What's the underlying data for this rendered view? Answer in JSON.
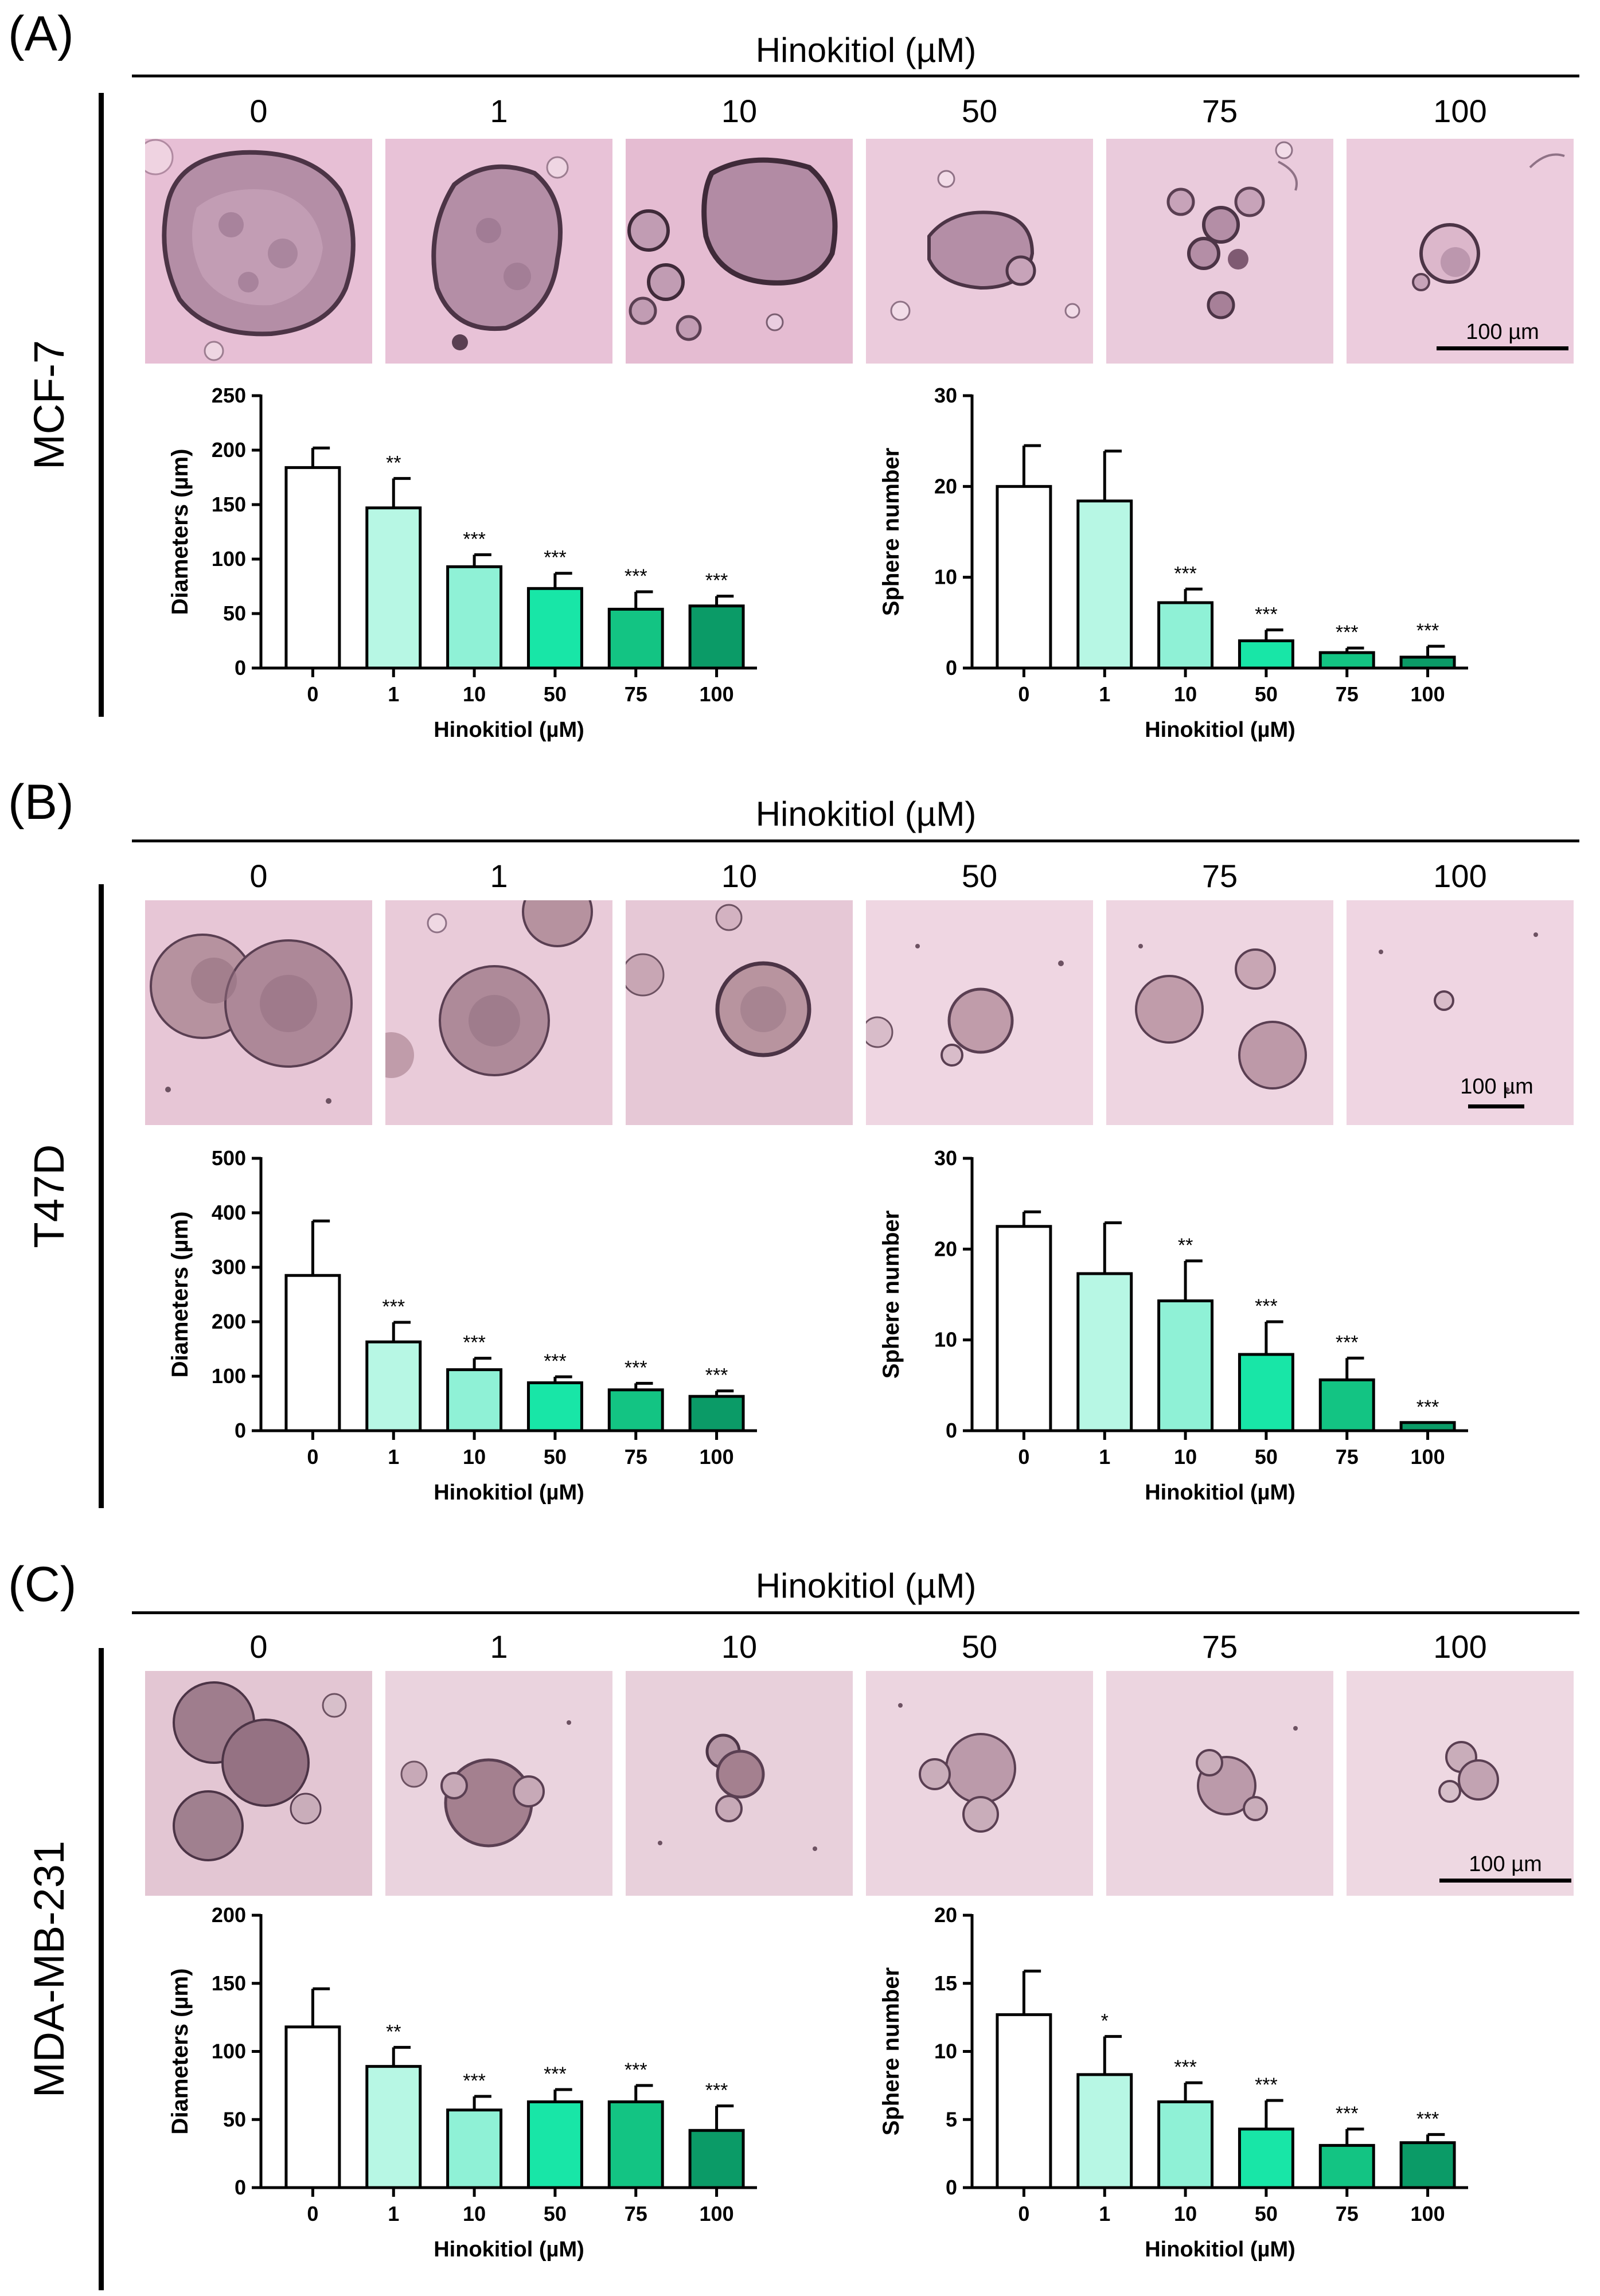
{
  "panels": [
    {
      "label": "(A)",
      "cell_line": "MCF-7",
      "header": "Hinokitiol (µM)",
      "concentrations": [
        "0",
        "1",
        "10",
        "50",
        "75",
        "100"
      ],
      "scale_label": "100 µm"
    },
    {
      "label": "(B)",
      "cell_line": "T47D",
      "header": "Hinokitiol (µM)",
      "concentrations": [
        "0",
        "1",
        "10",
        "50",
        "75",
        "100"
      ],
      "scale_label": "100 µm"
    },
    {
      "label": "(C)",
      "cell_line": "MDA-MB-231",
      "header": "Hinokitiol (µM)",
      "concentrations": [
        "0",
        "1",
        "10",
        "50",
        "75",
        "100"
      ],
      "scale_label": "100 µm"
    }
  ],
  "bar_colors": [
    "#ffffff",
    "#b7f7e4",
    "#8ff1d6",
    "#18e6a7",
    "#13c483",
    "#0b9b67"
  ],
  "chart_data": [
    {
      "type": "bar",
      "panel": "A",
      "metric": "diameters",
      "categories": [
        "0",
        "1",
        "10",
        "50",
        "75",
        "100"
      ],
      "values": [
        184,
        147,
        93,
        73,
        54,
        57
      ],
      "errors": [
        18,
        27,
        11,
        14,
        16,
        9
      ],
      "significance": [
        "",
        "**",
        "***",
        "***",
        "***",
        "***"
      ],
      "ylabel": "Diameters (µm)",
      "xlabel": "Hinokitiol (µM)",
      "ylim": [
        0,
        250
      ],
      "yticks": [
        0,
        50,
        100,
        150,
        200,
        250
      ]
    },
    {
      "type": "bar",
      "panel": "A",
      "metric": "sphere_number",
      "categories": [
        "0",
        "1",
        "10",
        "50",
        "75",
        "100"
      ],
      "values": [
        20,
        18.4,
        7.2,
        3,
        1.7,
        1.2
      ],
      "errors": [
        4.5,
        5.5,
        1.5,
        1.2,
        0.5,
        1.2
      ],
      "significance": [
        "",
        "",
        "***",
        "***",
        "***",
        "***"
      ],
      "ylabel": "Sphere number",
      "xlabel": "Hinokitiol (µM)",
      "ylim": [
        0,
        30
      ],
      "yticks": [
        0,
        10,
        20,
        30
      ]
    },
    {
      "type": "bar",
      "panel": "B",
      "metric": "diameters",
      "categories": [
        "0",
        "1",
        "10",
        "50",
        "75",
        "100"
      ],
      "values": [
        285,
        163,
        112,
        88,
        75,
        63
      ],
      "errors": [
        100,
        36,
        21,
        11,
        12,
        10
      ],
      "significance": [
        "",
        "***",
        "***",
        "***",
        "***",
        "***"
      ],
      "ylabel": "Diameters (µm)",
      "xlabel": "Hinokitiol (µM)",
      "ylim": [
        0,
        500
      ],
      "yticks": [
        0,
        100,
        200,
        300,
        400,
        500
      ]
    },
    {
      "type": "bar",
      "panel": "B",
      "metric": "sphere_number",
      "categories": [
        "0",
        "1",
        "10",
        "50",
        "75",
        "100"
      ],
      "values": [
        22.5,
        17.3,
        14.3,
        8.4,
        5.6,
        0.9
      ],
      "errors": [
        1.6,
        5.6,
        4.4,
        3.6,
        2.4,
        0
      ],
      "significance": [
        "",
        "",
        "**",
        "***",
        "***",
        "***"
      ],
      "ylabel": "Sphere number",
      "xlabel": "Hinokitiol (µM)",
      "ylim": [
        0,
        30
      ],
      "yticks": [
        0,
        10,
        20,
        30
      ]
    },
    {
      "type": "bar",
      "panel": "C",
      "metric": "diameters",
      "categories": [
        "0",
        "1",
        "10",
        "50",
        "75",
        "100"
      ],
      "values": [
        118,
        89,
        57,
        63,
        63,
        42
      ],
      "errors": [
        28,
        14,
        10,
        9,
        12,
        18
      ],
      "significance": [
        "",
        "**",
        "***",
        "***",
        "***",
        "***"
      ],
      "ylabel": "Diameters (µm)",
      "xlabel": "Hinokitiol (µM)",
      "ylim": [
        0,
        200
      ],
      "yticks": [
        0,
        50,
        100,
        150,
        200
      ]
    },
    {
      "type": "bar",
      "panel": "C",
      "metric": "sphere_number",
      "categories": [
        "0",
        "1",
        "10",
        "50",
        "75",
        "100"
      ],
      "values": [
        12.7,
        8.3,
        6.3,
        4.3,
        3.1,
        3.3
      ],
      "errors": [
        3.2,
        2.8,
        1.4,
        2.1,
        1.2,
        0.6
      ],
      "significance": [
        "",
        "*",
        "***",
        "***",
        "***",
        "***"
      ],
      "ylabel": "Sphere number",
      "xlabel": "Hinokitiol (µM)",
      "ylim": [
        0,
        20
      ],
      "yticks": [
        0,
        5,
        10,
        15,
        20
      ]
    }
  ]
}
